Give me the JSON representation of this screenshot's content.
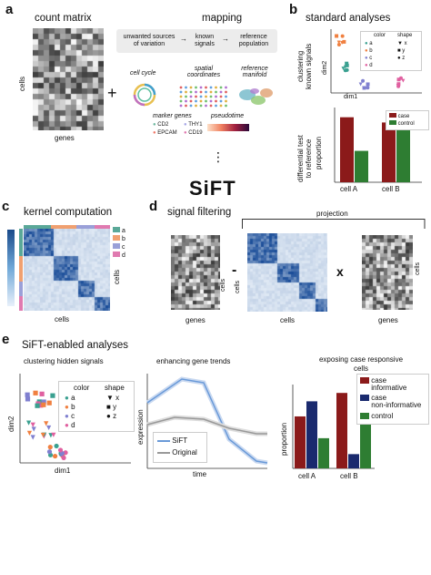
{
  "panels": {
    "a": {
      "letter": "a",
      "count_matrix_title": "count matrix",
      "mapping_title": "mapping",
      "cells_label": "cells",
      "genes_label": "genes",
      "plus": "+",
      "mapping_flow": [
        "unwanted sources\nof variation",
        "known\nsignals",
        "reference\npopulation"
      ],
      "arrow": "→",
      "cell_cycle": "cell cycle",
      "spatial": "spatial\ncoordinates",
      "reference_manifold": "reference\nmanifold",
      "marker_genes": "marker genes",
      "markers": [
        {
          "name": "CD2",
          "color": "#6fb7a0"
        },
        {
          "name": "THY1",
          "color": "#a6a6e6"
        },
        {
          "name": "EPCAM",
          "color": "#f07a6a"
        },
        {
          "name": "CD19",
          "color": "#e07ab0"
        }
      ],
      "pseudotime": "pseudotime",
      "sift_logo": "SiFT",
      "dots": "⋮"
    },
    "b": {
      "letter": "b",
      "title": "standard analyses",
      "ylabel_top": "clustering\nknown signals",
      "dim2": "dim2",
      "dim1": "dim1",
      "legend_color_title": "color",
      "legend_shape_title": "shape",
      "colors": [
        {
          "label": "a",
          "color": "#3aa090"
        },
        {
          "label": "b",
          "color": "#f08040"
        },
        {
          "label": "c",
          "color": "#8080d0"
        },
        {
          "label": "d",
          "color": "#e060a0"
        }
      ],
      "shapes": [
        "x",
        "y",
        "z"
      ],
      "ylabel_bottom": "differential test\nto reference",
      "proportion": "proportion",
      "bar_legend": [
        {
          "label": "case",
          "color": "#8b1a1a"
        },
        {
          "label": "control",
          "color": "#2e7d32"
        }
      ],
      "categories": [
        "cell A",
        "cell B"
      ],
      "bars": {
        "case": [
          0.87,
          0.8
        ],
        "control": [
          0.42,
          0.73
        ]
      }
    },
    "c": {
      "letter": "c",
      "title": "kernel computation",
      "cells_x": "cells",
      "cells_y": "cells",
      "legend": [
        {
          "label": "a",
          "color": "#5aa898"
        },
        {
          "label": "b",
          "color": "#f0a070"
        },
        {
          "label": "c",
          "color": "#9aa0d8"
        },
        {
          "label": "d",
          "color": "#e07ab0"
        }
      ]
    },
    "d": {
      "letter": "d",
      "title": "signal filtering",
      "projection": "projection",
      "minus": "-",
      "times": "x",
      "cells": "cells",
      "genes": "genes"
    },
    "e": {
      "letter": "e",
      "title": "SiFT-enabled analyses",
      "cluster_title": "clustering hidden signals",
      "dim2": "dim2",
      "dim1": "dim1",
      "legend_color_title": "color",
      "legend_shape_title": "shape",
      "colors": [
        {
          "label": "a",
          "color": "#3aa090"
        },
        {
          "label": "b",
          "color": "#f08040"
        },
        {
          "label": "c",
          "color": "#8080d0"
        },
        {
          "label": "d",
          "color": "#e060a0"
        }
      ],
      "shapes": [
        "x",
        "y",
        "z"
      ],
      "trend_title": "enhancing gene trends",
      "expression": "expression",
      "time": "time",
      "trend_legend": [
        {
          "label": "SiFT",
          "color": "#6a9ad8"
        },
        {
          "label": "Original",
          "color": "#999999"
        }
      ],
      "case_title": "exposing case responsive\ncells",
      "proportion": "proportion",
      "categories": [
        "cell A",
        "cell B"
      ],
      "case_legend": [
        {
          "label": "case\ninformative",
          "color": "#8b1a1a"
        },
        {
          "label": "case\nnon-informative",
          "color": "#1a2a6e"
        },
        {
          "label": "control",
          "color": "#2e7d32"
        }
      ],
      "bars": {
        "informative": [
          0.62,
          0.9
        ],
        "noninformative": [
          0.8,
          0.17
        ],
        "control": [
          0.36,
          0.54
        ]
      }
    }
  }
}
